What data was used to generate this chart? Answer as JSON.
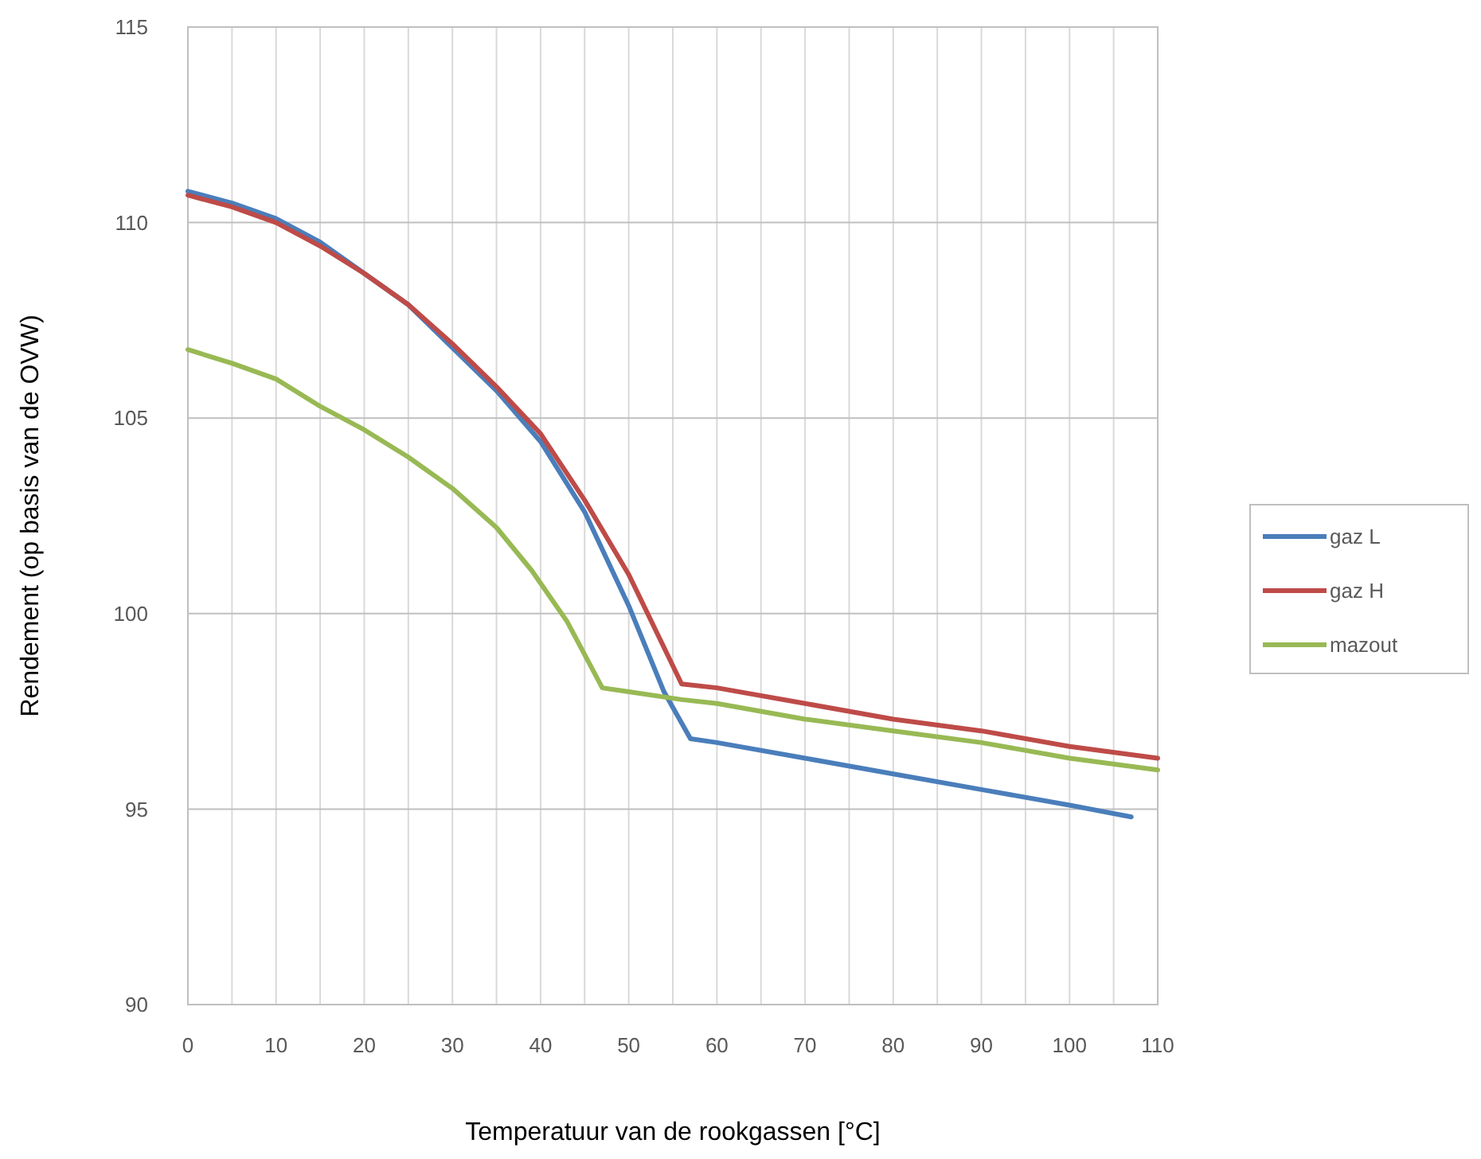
{
  "chart_data": {
    "type": "line",
    "xlabel": "Temperatuur van de rookgassen [°C]",
    "ylabel": "Rendement (op basis van de OVW)",
    "xlim": [
      0,
      110
    ],
    "xticks": [
      0,
      10,
      20,
      30,
      40,
      50,
      60,
      70,
      80,
      90,
      100,
      110
    ],
    "ylim": [
      90,
      115
    ],
    "yticks": [
      90,
      95,
      100,
      105,
      110,
      115
    ],
    "grid": true,
    "legend": "right",
    "line_style": "solid",
    "marker": "none",
    "series": [
      {
        "name": "gaz L",
        "color": "#4a7ebb",
        "x": [
          0,
          5,
          10,
          15,
          20,
          25,
          30,
          35,
          40,
          45,
          50,
          54,
          57,
          60,
          70,
          80,
          90,
          100,
          107
        ],
        "values": [
          110.8,
          110.5,
          110.1,
          109.5,
          108.7,
          107.9,
          106.8,
          105.7,
          104.4,
          102.6,
          100.2,
          98.0,
          96.8,
          96.7,
          96.3,
          95.9,
          95.5,
          95.1,
          94.8
        ]
      },
      {
        "name": "gaz H",
        "color": "#be4b48",
        "x": [
          0,
          5,
          10,
          15,
          20,
          25,
          30,
          35,
          40,
          45,
          50,
          53,
          56,
          60,
          70,
          80,
          90,
          100,
          110
        ],
        "values": [
          110.7,
          110.4,
          110.0,
          109.4,
          108.7,
          107.9,
          106.9,
          105.8,
          104.6,
          102.9,
          101.0,
          99.6,
          98.2,
          98.1,
          97.7,
          97.3,
          97.0,
          96.6,
          96.3
        ]
      },
      {
        "name": "mazout",
        "color": "#98b954",
        "x": [
          0,
          5,
          10,
          15,
          20,
          25,
          30,
          35,
          39,
          43,
          47,
          50,
          56,
          60,
          70,
          80,
          90,
          100,
          110
        ],
        "values": [
          106.75,
          106.4,
          106.0,
          105.3,
          104.7,
          104.0,
          103.2,
          102.2,
          101.1,
          99.8,
          98.1,
          98.0,
          97.8,
          97.7,
          97.3,
          97.0,
          96.7,
          96.3,
          96.0
        ]
      }
    ]
  }
}
